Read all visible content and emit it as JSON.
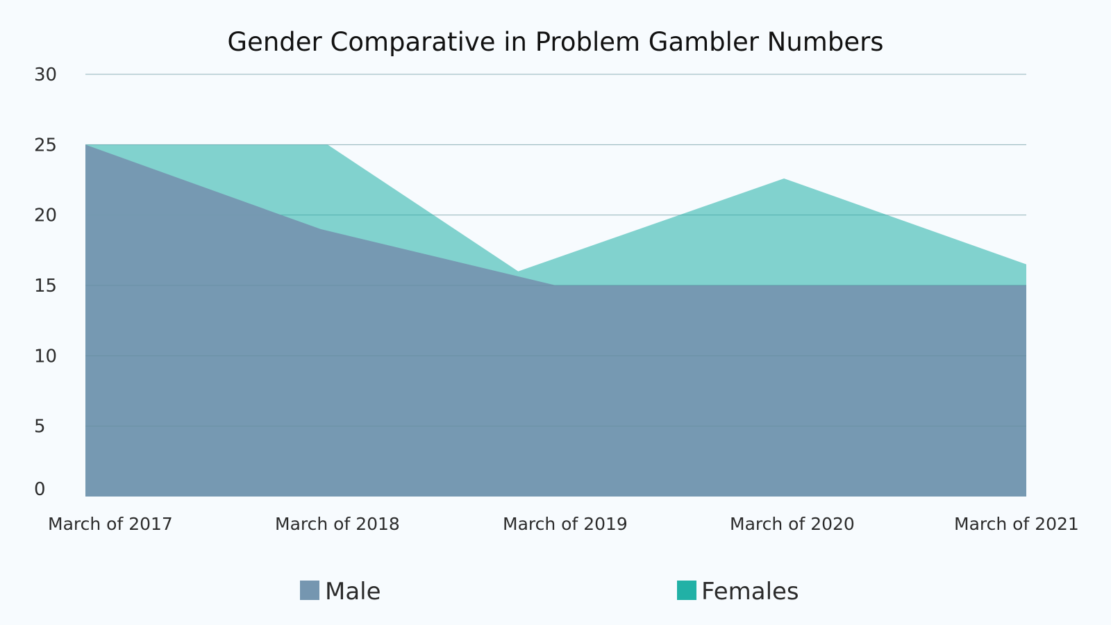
{
  "chart_data": {
    "type": "area",
    "title": "Gender Comparative in Problem Gambler Numbers",
    "xlabel": "",
    "ylabel": "",
    "categories": [
      "March of 2017",
      "March of 2018",
      "March of 2019",
      "March of 2020",
      "March of 2021"
    ],
    "ylim": [
      0,
      30
    ],
    "yticks": [
      0,
      5,
      10,
      15,
      20,
      25,
      30
    ],
    "grid": true,
    "legend_position": "bottom",
    "series": [
      {
        "name": "Females",
        "color": "#21b1a6",
        "x": [
          0,
          0.6,
          1.03,
          1.84,
          2.97,
          4
        ],
        "values": [
          25,
          25,
          25,
          16,
          22.6,
          16.5
        ]
      },
      {
        "name": "Male",
        "color": "#7596b0",
        "x": [
          0,
          1,
          2,
          3,
          4
        ],
        "values": [
          25,
          19,
          15,
          15,
          15
        ]
      }
    ],
    "legend": [
      "Male",
      "Females"
    ]
  }
}
